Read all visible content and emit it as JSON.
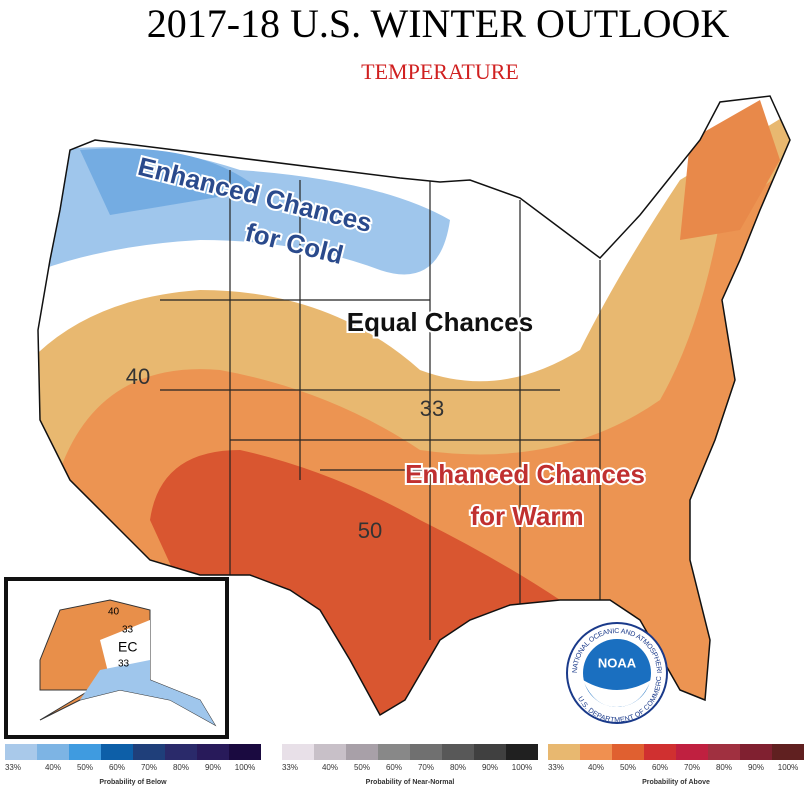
{
  "header": {
    "title": "2017-18 U.S. WINTER OUTLOOK",
    "subtitle": "TEMPERATURE"
  },
  "map": {
    "annotations": {
      "cold": [
        "Enhanced Chances",
        "for Cold"
      ],
      "equal": "Equal Chances",
      "warm": [
        "Enhanced Chances",
        "for Warm"
      ]
    },
    "contour_labels": [
      "40",
      "33",
      "50"
    ],
    "inset_labels": [
      "33",
      "40",
      "EC",
      "33"
    ]
  },
  "logo": {
    "name": "NOAA",
    "ring_top": "NATIONAL OCEANIC AND ATMOSPHERIC ADMINISTRATION",
    "ring_bottom": "U.S. DEPARTMENT OF COMMERCE"
  },
  "legend": [
    {
      "title": "Probability of Below",
      "labels": [
        "33%",
        "40%",
        "50%",
        "60%",
        "70%",
        "80%",
        "90%",
        "100%"
      ],
      "colors": [
        "#a9c9ea",
        "#7db4e4",
        "#3f9be0",
        "#0d5fa8",
        "#1f3f7a",
        "#2a2a6a",
        "#281a5a",
        "#1a0a40"
      ]
    },
    {
      "title": "Probability of Near-Normal",
      "labels": [
        "33%",
        "40%",
        "50%",
        "60%",
        "70%",
        "80%",
        "90%",
        "100%"
      ],
      "colors": [
        "#e8e0e8",
        "#c8c0c8",
        "#a8a0a8",
        "#888888",
        "#707070",
        "#585858",
        "#404040",
        "#202020"
      ]
    },
    {
      "title": "Probability of Above",
      "labels": [
        "33%",
        "40%",
        "50%",
        "60%",
        "70%",
        "80%",
        "90%",
        "100%"
      ],
      "colors": [
        "#e8b870",
        "#f09050",
        "#e06030",
        "#d03030",
        "#c02040",
        "#a03040",
        "#802030",
        "#602020"
      ]
    }
  ]
}
